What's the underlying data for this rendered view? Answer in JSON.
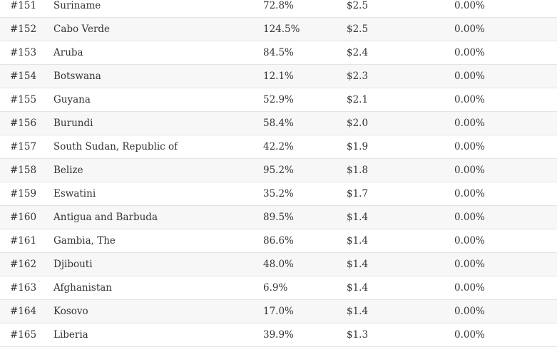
{
  "table": {
    "rows": [
      {
        "rank": "#151",
        "name": "Suriname",
        "pct": "72.8%",
        "value": "$2.5",
        "change": "0.00%"
      },
      {
        "rank": "#152",
        "name": "Cabo Verde",
        "pct": "124.5%",
        "value": "$2.5",
        "change": "0.00%"
      },
      {
        "rank": "#153",
        "name": "Aruba",
        "pct": "84.5%",
        "value": "$2.4",
        "change": "0.00%"
      },
      {
        "rank": "#154",
        "name": "Botswana",
        "pct": "12.1%",
        "value": "$2.3",
        "change": "0.00%"
      },
      {
        "rank": "#155",
        "name": "Guyana",
        "pct": "52.9%",
        "value": "$2.1",
        "change": "0.00%"
      },
      {
        "rank": "#156",
        "name": "Burundi",
        "pct": "58.4%",
        "value": "$2.0",
        "change": "0.00%"
      },
      {
        "rank": "#157",
        "name": "South Sudan, Republic of",
        "pct": "42.2%",
        "value": "$1.9",
        "change": "0.00%"
      },
      {
        "rank": "#158",
        "name": "Belize",
        "pct": "95.2%",
        "value": "$1.8",
        "change": "0.00%"
      },
      {
        "rank": "#159",
        "name": "Eswatini",
        "pct": "35.2%",
        "value": "$1.7",
        "change": "0.00%"
      },
      {
        "rank": "#160",
        "name": "Antigua and Barbuda",
        "pct": "89.5%",
        "value": "$1.4",
        "change": "0.00%"
      },
      {
        "rank": "#161",
        "name": "Gambia, The",
        "pct": "86.6%",
        "value": "$1.4",
        "change": "0.00%"
      },
      {
        "rank": "#162",
        "name": "Djibouti",
        "pct": "48.0%",
        "value": "$1.4",
        "change": "0.00%"
      },
      {
        "rank": "#163",
        "name": "Afghanistan",
        "pct": "6.9%",
        "value": "$1.4",
        "change": "0.00%"
      },
      {
        "rank": "#164",
        "name": "Kosovo",
        "pct": "17.0%",
        "value": "$1.4",
        "change": "0.00%"
      },
      {
        "rank": "#165",
        "name": "Liberia",
        "pct": "39.9%",
        "value": "$1.3",
        "change": "0.00%"
      }
    ]
  }
}
